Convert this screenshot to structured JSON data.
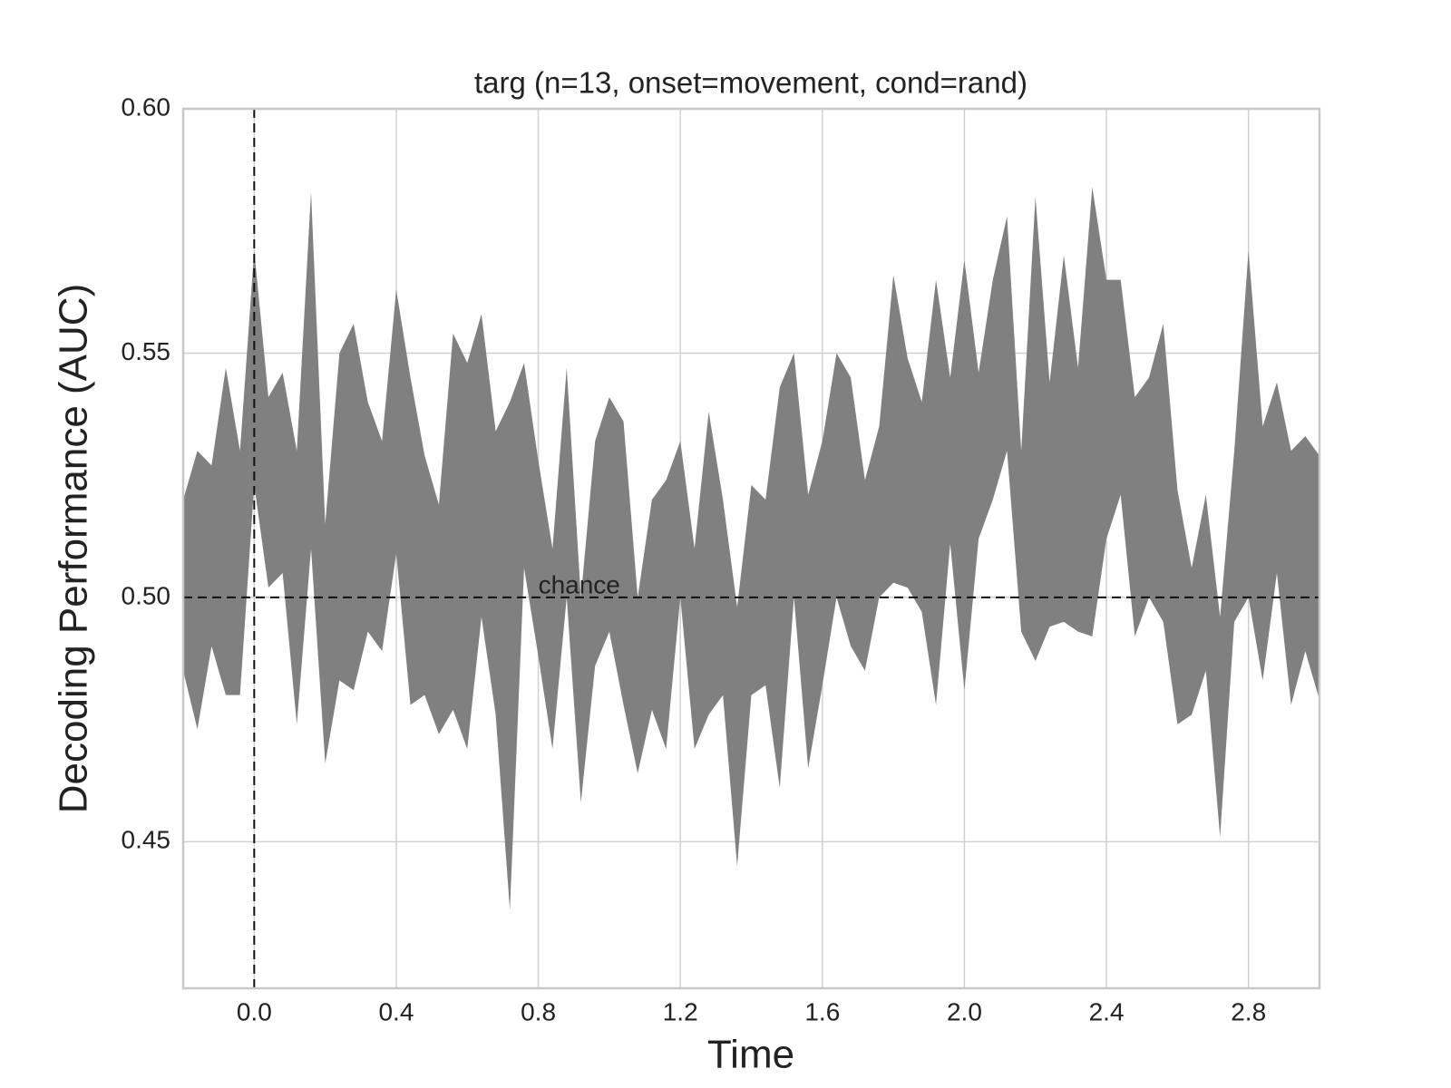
{
  "chart_data": {
    "type": "band",
    "title": "targ (n=13, onset=movement, cond=rand)",
    "x_label": "Time",
    "y_label": "Decoding Performance (AUC)",
    "color": "#808080",
    "x": [
      -0.2,
      -0.16,
      -0.12,
      -0.08,
      -0.04,
      0,
      0.04,
      0.08,
      0.12,
      0.16,
      0.2,
      0.24,
      0.28,
      0.32,
      0.36,
      0.4,
      0.44,
      0.48,
      0.52,
      0.56,
      0.6,
      0.64,
      0.68,
      0.72,
      0.76,
      0.8,
      0.84,
      0.88,
      0.92,
      0.96,
      1,
      1.04,
      1.08,
      1.12,
      1.16,
      1.2,
      1.24,
      1.28,
      1.32,
      1.36,
      1.4,
      1.44,
      1.48,
      1.52,
      1.56,
      1.6,
      1.64,
      1.68,
      1.72,
      1.76,
      1.8,
      1.84,
      1.88,
      1.92,
      1.96,
      2,
      2.04,
      2.08,
      2.12,
      2.16,
      2.2,
      2.24,
      2.28,
      2.32,
      2.36,
      2.4,
      2.44,
      2.48,
      2.52,
      2.56,
      2.6,
      2.64,
      2.68,
      2.72,
      2.76,
      2.8,
      2.84,
      2.88,
      2.92,
      2.96,
      3
    ],
    "upper": [
      0.52,
      0.53,
      0.527,
      0.547,
      0.53,
      0.571,
      0.541,
      0.546,
      0.53,
      0.583,
      0.515,
      0.55,
      0.556,
      0.54,
      0.532,
      0.563,
      0.545,
      0.529,
      0.519,
      0.554,
      0.548,
      0.558,
      0.534,
      0.54,
      0.548,
      0.528,
      0.51,
      0.547,
      0.5,
      0.532,
      0.541,
      0.536,
      0.5,
      0.52,
      0.524,
      0.532,
      0.51,
      0.538,
      0.52,
      0.498,
      0.523,
      0.52,
      0.543,
      0.55,
      0.521,
      0.532,
      0.55,
      0.545,
      0.524,
      0.535,
      0.566,
      0.549,
      0.54,
      0.565,
      0.545,
      0.569,
      0.546,
      0.565,
      0.578,
      0.53,
      0.582,
      0.544,
      0.57,
      0.547,
      0.584,
      0.565,
      0.565,
      0.541,
      0.545,
      0.556,
      0.522,
      0.506,
      0.521,
      0.496,
      0.53,
      0.571,
      0.535,
      0.544,
      0.53,
      0.533,
      0.529
    ],
    "lower": [
      0.485,
      0.473,
      0.49,
      0.48,
      0.48,
      0.523,
      0.502,
      0.505,
      0.474,
      0.51,
      0.466,
      0.483,
      0.481,
      0.493,
      0.489,
      0.509,
      0.478,
      0.48,
      0.472,
      0.477,
      0.469,
      0.496,
      0.476,
      0.436,
      0.506,
      0.488,
      0.469,
      0.5,
      0.458,
      0.486,
      0.493,
      0.478,
      0.464,
      0.477,
      0.469,
      0.5,
      0.469,
      0.476,
      0.48,
      0.445,
      0.48,
      0.482,
      0.461,
      0.5,
      0.465,
      0.482,
      0.5,
      0.49,
      0.485,
      0.5,
      0.503,
      0.502,
      0.497,
      0.478,
      0.511,
      0.481,
      0.512,
      0.52,
      0.53,
      0.493,
      0.487,
      0.494,
      0.495,
      0.493,
      0.492,
      0.512,
      0.521,
      0.492,
      0.5,
      0.495,
      0.474,
      0.476,
      0.485,
      0.451,
      0.495,
      0.5,
      0.483,
      0.505,
      0.478,
      0.489,
      0.479
    ],
    "chance_level": 0.5,
    "chance_label": "chance",
    "onset": 0,
    "xlim": [
      -0.2,
      3.0
    ],
    "xticks": [
      {
        "value": 0,
        "label": "0.0"
      },
      0.4,
      0.8,
      1.2,
      1.6,
      {
        "value": 2,
        "label": "2.0"
      },
      2.4,
      2.8
    ],
    "ylim": [
      0.42,
      0.6
    ],
    "yticks": [
      0.45,
      {
        "value": 0.5,
        "label": "0.50"
      },
      0.55,
      {
        "value": 0.6,
        "label": "0.60"
      }
    ],
    "grid": true
  }
}
